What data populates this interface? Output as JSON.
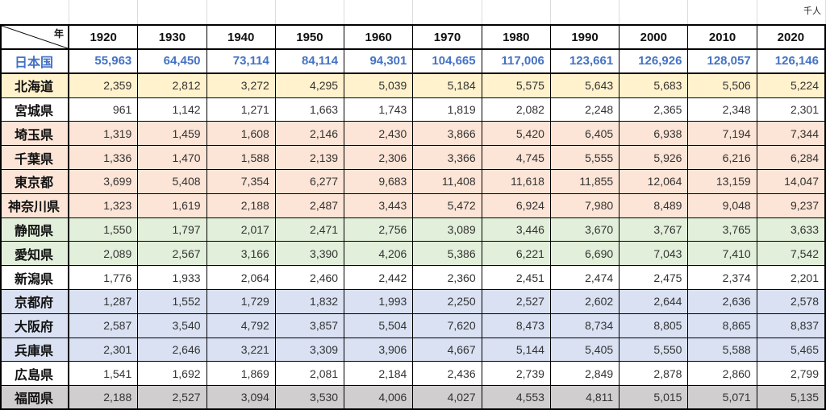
{
  "colors": {
    "border": "#000000",
    "gridline": "#dcdcdc",
    "value_text": "#333333"
  },
  "chart_data": {
    "type": "table",
    "unit": "千人",
    "header_label": "年",
    "columns": [
      "1920",
      "1930",
      "1940",
      "1950",
      "1960",
      "1970",
      "1980",
      "1990",
      "2000",
      "2010",
      "2020"
    ],
    "rows": [
      {
        "name": "日本国",
        "fill": "#ffffff",
        "text_color": "#4472c4",
        "values": [
          "55,963",
          "64,450",
          "73,114",
          "84,114",
          "94,301",
          "104,665",
          "117,006",
          "123,661",
          "126,926",
          "128,057",
          "126,146"
        ]
      },
      {
        "name": "北海道",
        "fill": "#fff2cc",
        "values": [
          "2,359",
          "2,812",
          "3,272",
          "4,295",
          "5,039",
          "5,184",
          "5,575",
          "5,643",
          "5,683",
          "5,506",
          "5,224"
        ]
      },
      {
        "name": "宮城県",
        "fill": "#ffffff",
        "values": [
          "961",
          "1,142",
          "1,271",
          "1,663",
          "1,743",
          "1,819",
          "2,082",
          "2,248",
          "2,365",
          "2,348",
          "2,301"
        ]
      },
      {
        "name": "埼玉県",
        "fill": "#fce4d6",
        "values": [
          "1,319",
          "1,459",
          "1,608",
          "2,146",
          "2,430",
          "3,866",
          "5,420",
          "6,405",
          "6,938",
          "7,194",
          "7,344"
        ]
      },
      {
        "name": "千葉県",
        "fill": "#fce4d6",
        "values": [
          "1,336",
          "1,470",
          "1,588",
          "2,139",
          "2,306",
          "3,366",
          "4,745",
          "5,555",
          "5,926",
          "6,216",
          "6,284"
        ]
      },
      {
        "name": "東京都",
        "fill": "#fce4d6",
        "values": [
          "3,699",
          "5,408",
          "7,354",
          "6,277",
          "9,683",
          "11,408",
          "11,618",
          "11,855",
          "12,064",
          "13,159",
          "14,047"
        ]
      },
      {
        "name": "神奈川県",
        "fill": "#fce4d6",
        "values": [
          "1,323",
          "1,619",
          "2,188",
          "2,487",
          "3,443",
          "5,472",
          "6,924",
          "7,980",
          "8,489",
          "9,048",
          "9,237"
        ]
      },
      {
        "name": "静岡県",
        "fill": "#e2efda",
        "values": [
          "1,550",
          "1,797",
          "2,017",
          "2,471",
          "2,756",
          "3,089",
          "3,446",
          "3,670",
          "3,767",
          "3,765",
          "3,633"
        ]
      },
      {
        "name": "愛知県",
        "fill": "#e2efda",
        "values": [
          "2,089",
          "2,567",
          "3,166",
          "3,390",
          "4,206",
          "5,386",
          "6,221",
          "6,690",
          "7,043",
          "7,410",
          "7,542"
        ]
      },
      {
        "name": "新潟県",
        "fill": "#ffffff",
        "values": [
          "1,776",
          "1,933",
          "2,064",
          "2,460",
          "2,442",
          "2,360",
          "2,451",
          "2,474",
          "2,475",
          "2,374",
          "2,201"
        ]
      },
      {
        "name": "京都府",
        "fill": "#d9e1f2",
        "values": [
          "1,287",
          "1,552",
          "1,729",
          "1,832",
          "1,993",
          "2,250",
          "2,527",
          "2,602",
          "2,644",
          "2,636",
          "2,578"
        ]
      },
      {
        "name": "大阪府",
        "fill": "#d9e1f2",
        "values": [
          "2,587",
          "3,540",
          "4,792",
          "3,857",
          "5,504",
          "7,620",
          "8,473",
          "8,734",
          "8,805",
          "8,865",
          "8,837"
        ]
      },
      {
        "name": "兵庫県",
        "fill": "#d9e1f2",
        "values": [
          "2,301",
          "2,646",
          "3,221",
          "3,309",
          "3,906",
          "4,667",
          "5,144",
          "5,405",
          "5,550",
          "5,588",
          "5,465"
        ]
      },
      {
        "name": "広島県",
        "fill": "#ffffff",
        "values": [
          "1,541",
          "1,692",
          "1,869",
          "2,081",
          "2,184",
          "2,436",
          "2,739",
          "2,849",
          "2,878",
          "2,860",
          "2,799"
        ]
      },
      {
        "name": "福岡県",
        "fill": "#d0cece",
        "values": [
          "2,188",
          "2,527",
          "3,094",
          "3,530",
          "4,006",
          "4,027",
          "4,553",
          "4,811",
          "5,015",
          "5,071",
          "5,135"
        ]
      }
    ]
  }
}
